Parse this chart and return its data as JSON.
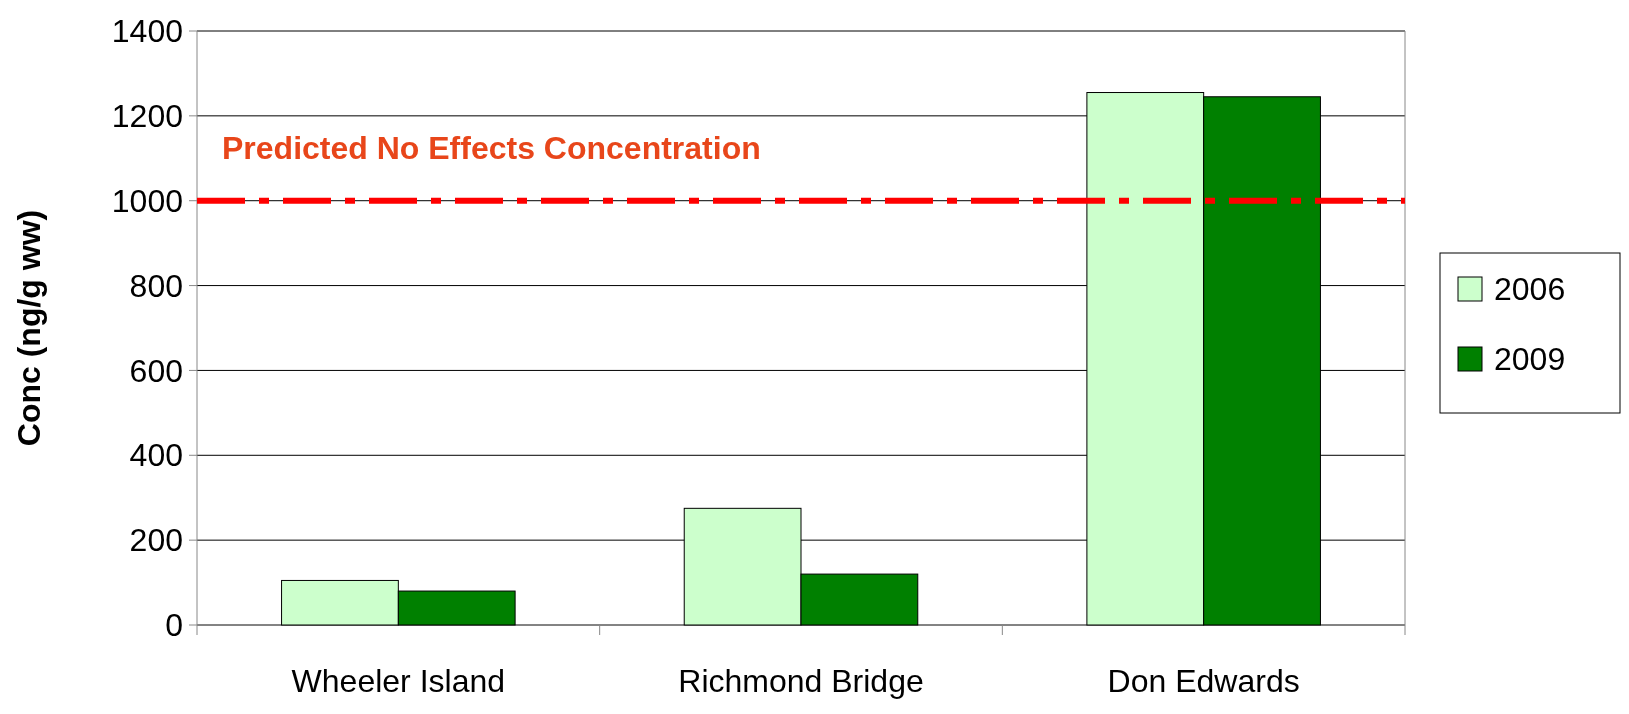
{
  "chart_data": {
    "type": "bar",
    "ylabel": "Conc (ng/g ww)",
    "categories": [
      "Wheeler Island",
      "Richmond Bridge",
      "Don Edwards"
    ],
    "series": [
      {
        "name": "2006",
        "color": "#ccffcc",
        "values": [
          105,
          275,
          1255
        ]
      },
      {
        "name": "2009",
        "color": "#008000",
        "values": [
          80,
          120,
          1245
        ]
      }
    ],
    "ylim": [
      0,
      1400
    ],
    "yticks": [
      0,
      200,
      400,
      600,
      800,
      1000,
      1200,
      1400
    ],
    "grid": "y",
    "legend": "right",
    "ref_lines": [
      {
        "axis": "y",
        "value": 1000,
        "label": "Predicted No Effects Concentration",
        "color": "#ff0000",
        "line_style": "dashed"
      }
    ]
  }
}
